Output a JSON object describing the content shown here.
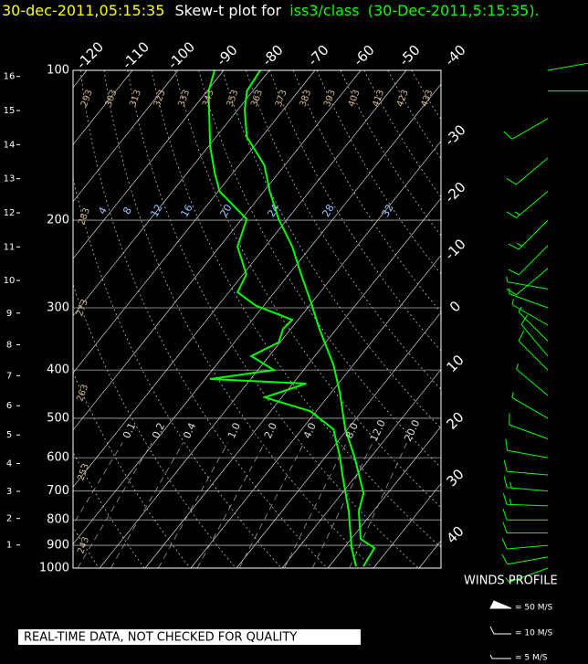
{
  "title": {
    "date": "30-dec-2011,05:15:35",
    "text": "Skew-t plot for",
    "platform": "iss3/class",
    "stamp": "(30-Dec-2011,5:15:35)."
  },
  "chart_data": {
    "type": "skewt",
    "y_scale": "log",
    "ylim": [
      1000,
      100
    ],
    "yticks": [
      100,
      200,
      300,
      400,
      500,
      600,
      700,
      800,
      900,
      1000
    ],
    "height_ticks": [
      1,
      2,
      3,
      4,
      5,
      6,
      7,
      8,
      9,
      10,
      11,
      12,
      13,
      14,
      15,
      16
    ],
    "isotherms": [
      -120,
      -110,
      -100,
      -90,
      -80,
      -70,
      -60,
      -50,
      -40,
      -30,
      -20,
      -10,
      0,
      10,
      20,
      30,
      40
    ],
    "dry_adiabats": [
      243,
      253,
      263,
      273,
      283,
      293,
      303,
      313,
      323,
      333,
      343,
      353,
      363,
      373,
      383,
      393,
      403,
      413,
      423,
      433
    ],
    "mixing_ratios": [
      0.1,
      0.2,
      0.4,
      {
        "value": 1,
        "label": "1.0"
      },
      {
        "value": 2,
        "label": "2.0"
      },
      {
        "value": 4,
        "label": "4.0"
      },
      {
        "value": 8,
        "label": "8.0"
      },
      {
        "value": 12,
        "label": "12.0"
      },
      {
        "value": 20,
        "label": "20.0"
      }
    ],
    "upper_labels": [
      4,
      8,
      12,
      16,
      20,
      24,
      28,
      32
    ],
    "profiles": [
      {
        "color": "#00ff00",
        "pressure": [
          992,
          911,
          874,
          770,
          707,
          597,
          526,
          444,
          391,
          331,
          291,
          257,
          226,
          199,
          175,
          155,
          136,
          120,
          110,
          100
        ],
        "values": [
          27.5,
          26.7,
          22.1,
          16.9,
          14.7,
          6.3,
          -0.5,
          -8.1,
          -14.3,
          -23.7,
          -30.5,
          -37.3,
          -44.1,
          -51.9,
          -58.7,
          -64.5,
          -73.3,
          -78.5,
          -81.3,
          -82
        ]
      },
      {
        "color": "#00ff00",
        "pressure": [
          992,
          911,
          770,
          650,
          597,
          526,
          484,
          454,
          426,
          417,
          400,
          375,
          352,
          331,
          317,
          297,
          279,
          257,
          226,
          199,
          175,
          161,
          142,
          110,
          100
        ],
        "values": [
          25.9,
          21.7,
          14.7,
          6.9,
          3.1,
          -3.1,
          -11.3,
          -23.7,
          -17.1,
          -38.9,
          -26.5,
          -33.9,
          -30.3,
          -31.7,
          -31.3,
          -41.7,
          -48.1,
          -49.3,
          -56.1,
          -58.9,
          -69.7,
          -73.9,
          -79.7,
          -89.7,
          -92
        ]
      }
    ],
    "winds": {
      "color": "#00ff00",
      "pressure": [
        1000,
        950,
        900,
        850,
        800,
        750,
        700,
        650,
        600,
        550,
        500,
        450,
        400,
        375,
        350,
        325,
        300,
        275,
        250,
        225,
        200,
        175,
        150,
        125,
        110,
        100
      ],
      "direction": [
        250,
        260,
        265,
        270,
        270,
        272,
        275,
        275,
        280,
        290,
        300,
        310,
        315,
        320,
        315,
        300,
        290,
        280,
        230,
        225,
        225,
        230,
        230,
        240,
        90,
        80
      ],
      "speed": [
        8,
        10,
        12,
        12,
        14,
        15,
        15,
        14,
        12,
        10,
        8,
        8,
        10,
        10,
        8,
        6,
        5,
        5,
        10,
        12,
        15,
        15,
        12,
        10,
        8,
        6
      ]
    },
    "winds_title": "WINDS PROFILE",
    "winds_legend": [
      "= 50 M/S",
      "= 10 M/S",
      "= 5 M/S"
    ]
  },
  "notice": "REAL-TIME DATA, NOT CHECKED FOR QUALITY"
}
